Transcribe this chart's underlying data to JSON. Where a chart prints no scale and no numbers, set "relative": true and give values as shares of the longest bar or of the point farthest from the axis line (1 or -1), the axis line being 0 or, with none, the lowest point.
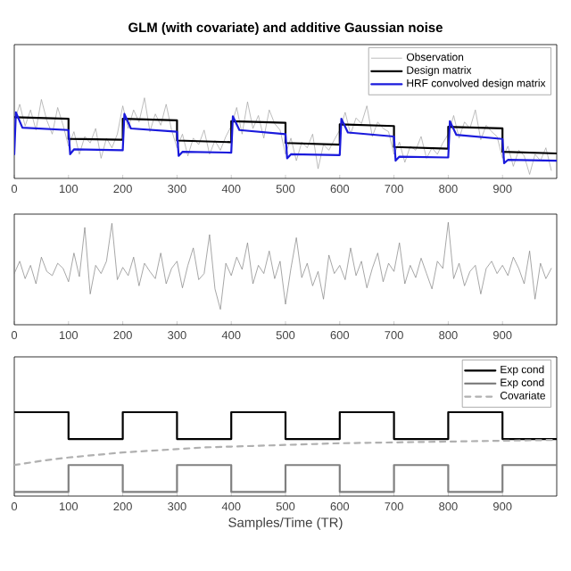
{
  "chart_data": [
    {
      "type": "line",
      "title": "GLM (with covariate) and additive Gaussian noise",
      "relative": true,
      "xlim": [
        0,
        1000
      ],
      "xticks": [
        0,
        100,
        200,
        300,
        400,
        500,
        600,
        700,
        800,
        900
      ],
      "legend": "top right",
      "series": [
        {
          "name": "Observation",
          "color": "#a0a0a0",
          "x": [
            0,
            10,
            20,
            30,
            40,
            50,
            60,
            70,
            80,
            90,
            100,
            110,
            120,
            130,
            140,
            150,
            160,
            170,
            180,
            190,
            200,
            210,
            220,
            230,
            240,
            250,
            260,
            270,
            280,
            290,
            300,
            310,
            320,
            330,
            340,
            350,
            360,
            370,
            380,
            390,
            400,
            410,
            420,
            430,
            440,
            450,
            460,
            470,
            480,
            490,
            500,
            510,
            520,
            530,
            540,
            550,
            560,
            570,
            580,
            590,
            600,
            610,
            620,
            630,
            640,
            650,
            660,
            670,
            680,
            690,
            700,
            710,
            720,
            730,
            740,
            750,
            760,
            770,
            780,
            790,
            800,
            810,
            820,
            830,
            840,
            850,
            860,
            870,
            880,
            890,
            900,
            910,
            920,
            930,
            940,
            950,
            960,
            970,
            980,
            990
          ],
          "values": [
            0.7,
            0.92,
            0.65,
            0.85,
            0.6,
            0.98,
            0.72,
            0.55,
            0.88,
            0.66,
            0.4,
            0.58,
            0.3,
            0.52,
            0.44,
            0.62,
            0.25,
            0.5,
            0.38,
            0.55,
            0.9,
            0.62,
            0.85,
            0.7,
            1.0,
            0.58,
            0.8,
            0.66,
            0.92,
            0.6,
            0.38,
            0.55,
            0.28,
            0.5,
            0.42,
            0.6,
            0.3,
            0.47,
            0.35,
            0.52,
            0.65,
            0.88,
            0.55,
            0.95,
            0.62,
            0.78,
            0.5,
            0.85,
            0.68,
            0.6,
            0.3,
            0.5,
            0.22,
            0.45,
            0.38,
            0.55,
            0.12,
            0.42,
            0.35,
            0.48,
            0.6,
            0.82,
            0.55,
            0.75,
            0.68,
            0.9,
            0.52,
            0.7,
            0.62,
            0.58,
            0.3,
            0.45,
            0.2,
            0.4,
            0.35,
            0.52,
            0.25,
            0.38,
            0.3,
            0.44,
            0.55,
            0.78,
            0.5,
            0.7,
            0.62,
            0.85,
            0.48,
            0.66,
            0.58,
            0.52,
            0.25,
            0.4,
            0.15,
            0.35,
            0.28,
            0.05,
            0.3,
            0.22,
            0.38,
            0.1
          ]
        },
        {
          "name": "Design matrix",
          "color": "#000000",
          "x": [
            0,
            100,
            100,
            200,
            200,
            300,
            300,
            400,
            400,
            500,
            500,
            600,
            600,
            700,
            700,
            800,
            800,
            900,
            900,
            1000
          ],
          "values": [
            0.76,
            0.74,
            0.49,
            0.48,
            0.74,
            0.72,
            0.47,
            0.45,
            0.71,
            0.69,
            0.44,
            0.42,
            0.67,
            0.65,
            0.39,
            0.37,
            0.64,
            0.62,
            0.33,
            0.31
          ]
        },
        {
          "name": "HRF convolved design matrix",
          "color": "#1a1adc",
          "x": [
            0,
            3,
            15,
            100,
            103,
            110,
            200,
            203,
            215,
            300,
            303,
            310,
            400,
            403,
            415,
            500,
            503,
            510,
            600,
            603,
            615,
            700,
            703,
            710,
            800,
            803,
            815,
            900,
            903,
            910,
            1000
          ],
          "values": [
            0.3,
            0.82,
            0.63,
            0.6,
            0.3,
            0.36,
            0.35,
            0.8,
            0.62,
            0.58,
            0.28,
            0.33,
            0.32,
            0.77,
            0.6,
            0.55,
            0.25,
            0.3,
            0.29,
            0.74,
            0.57,
            0.52,
            0.22,
            0.27,
            0.26,
            0.71,
            0.54,
            0.49,
            0.19,
            0.23,
            0.22
          ]
        }
      ]
    },
    {
      "type": "line",
      "relative": true,
      "xlim": [
        0,
        1000
      ],
      "xticks": [
        0,
        100,
        200,
        300,
        400,
        500,
        600,
        700,
        800,
        900
      ],
      "series": [
        {
          "color": "#808080",
          "x": [
            0,
            10,
            20,
            30,
            40,
            50,
            60,
            70,
            80,
            90,
            100,
            110,
            120,
            130,
            140,
            150,
            160,
            170,
            180,
            190,
            200,
            210,
            220,
            230,
            240,
            250,
            260,
            270,
            280,
            290,
            300,
            310,
            320,
            330,
            340,
            350,
            360,
            370,
            380,
            390,
            400,
            410,
            420,
            430,
            440,
            450,
            460,
            470,
            480,
            490,
            500,
            510,
            520,
            530,
            540,
            550,
            560,
            570,
            580,
            590,
            600,
            610,
            620,
            630,
            640,
            650,
            660,
            670,
            680,
            690,
            700,
            710,
            720,
            730,
            740,
            750,
            760,
            770,
            780,
            790,
            800,
            810,
            820,
            830,
            840,
            850,
            860,
            870,
            880,
            890,
            900,
            910,
            920,
            930,
            940,
            950,
            960,
            970,
            980,
            990
          ],
          "values": [
            0.5,
            0.62,
            0.45,
            0.58,
            0.4,
            0.66,
            0.52,
            0.48,
            0.6,
            0.55,
            0.42,
            0.7,
            0.47,
            0.95,
            0.3,
            0.58,
            0.5,
            0.62,
            0.99,
            0.44,
            0.56,
            0.48,
            0.66,
            0.38,
            0.6,
            0.52,
            0.45,
            0.7,
            0.4,
            0.55,
            0.62,
            0.36,
            0.58,
            0.75,
            0.44,
            0.5,
            0.88,
            0.35,
            0.15,
            0.6,
            0.48,
            0.66,
            0.54,
            0.8,
            0.4,
            0.58,
            0.5,
            0.72,
            0.45,
            0.62,
            0.2,
            0.55,
            0.85,
            0.46,
            0.6,
            0.38,
            0.52,
            0.25,
            0.68,
            0.5,
            0.58,
            0.44,
            0.75,
            0.48,
            0.62,
            0.36,
            0.55,
            0.7,
            0.42,
            0.6,
            0.52,
            0.8,
            0.4,
            0.58,
            0.46,
            0.65,
            0.5,
            0.35,
            0.62,
            0.55,
            1.0,
            0.45,
            0.6,
            0.38,
            0.52,
            0.58,
            0.3,
            0.55,
            0.62,
            0.5,
            0.58,
            0.48,
            0.66,
            0.55,
            0.4,
            0.72,
            0.25,
            0.6,
            0.45,
            0.55
          ]
        }
      ]
    },
    {
      "type": "line",
      "xlabel": "Samples/Time (TR)",
      "relative": true,
      "xlim": [
        0,
        1000
      ],
      "xticks": [
        0,
        100,
        200,
        300,
        400,
        500,
        600,
        700,
        800,
        900
      ],
      "legend": "top right",
      "series": [
        {
          "name": "Exp cond",
          "color": "#000000",
          "x": [
            0,
            100,
            100,
            200,
            200,
            300,
            300,
            400,
            400,
            500,
            500,
            600,
            600,
            700,
            700,
            800,
            800,
            900,
            900,
            1000
          ],
          "values": [
            1.0,
            1.0,
            0.68,
            0.68,
            1.0,
            1.0,
            0.68,
            0.68,
            1.0,
            1.0,
            0.68,
            0.68,
            1.0,
            1.0,
            0.68,
            0.68,
            1.0,
            1.0,
            0.68,
            0.68
          ]
        },
        {
          "name": "Exp cond",
          "color": "#808080",
          "x": [
            0,
            100,
            100,
            200,
            200,
            300,
            300,
            400,
            400,
            500,
            500,
            600,
            600,
            700,
            700,
            800,
            800,
            900,
            900,
            1000
          ],
          "values": [
            0.05,
            0.05,
            0.37,
            0.37,
            0.05,
            0.05,
            0.37,
            0.37,
            0.05,
            0.05,
            0.37,
            0.37,
            0.05,
            0.05,
            0.37,
            0.37,
            0.05,
            0.05,
            0.37,
            0.37
          ]
        },
        {
          "name": "Covariate",
          "color": "#b0b0b0",
          "line_style": "dashed",
          "x": [
            0,
            50,
            100,
            150,
            200,
            250,
            300,
            350,
            400,
            450,
            500,
            550,
            600,
            650,
            700,
            750,
            800,
            850,
            900,
            950,
            1000
          ],
          "values": [
            0.37,
            0.42,
            0.46,
            0.49,
            0.52,
            0.54,
            0.56,
            0.58,
            0.59,
            0.6,
            0.61,
            0.62,
            0.63,
            0.635,
            0.64,
            0.645,
            0.65,
            0.655,
            0.66,
            0.665,
            0.67
          ]
        }
      ]
    }
  ]
}
